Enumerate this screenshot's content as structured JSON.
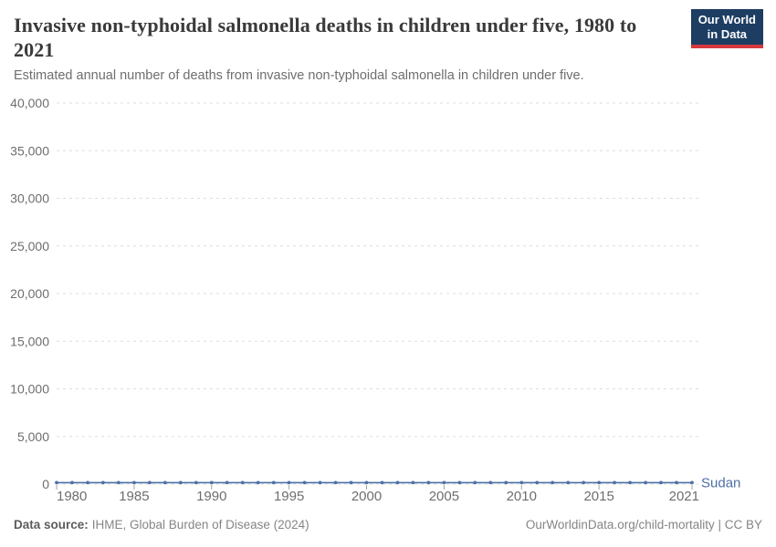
{
  "header": {
    "title": "Invasive non-typhoidal salmonella deaths in children under five, 1980 to 2021",
    "subtitle": "Estimated annual number of deaths from invasive non-typhoidal salmonella in children under five.",
    "logo": {
      "line1": "Our World",
      "line2": "in Data",
      "bg_color": "#1d3d63",
      "stripe_color": "#d7383d"
    }
  },
  "chart_data": {
    "type": "line",
    "title": "Invasive non-typhoidal salmonella deaths in children under five, 1980 to 2021",
    "xlabel": "",
    "ylabel": "",
    "xlim": [
      1980,
      2021
    ],
    "ylim": [
      0,
      40000
    ],
    "yticks": [
      0,
      5000,
      10000,
      15000,
      20000,
      25000,
      30000,
      35000,
      40000
    ],
    "xticks": [
      1980,
      1985,
      1990,
      1995,
      2000,
      2005,
      2010,
      2015,
      2021
    ],
    "grid": "horizontal-dashed",
    "legend_position": "end-of-line-label",
    "x": [
      1980,
      1981,
      1982,
      1983,
      1984,
      1985,
      1986,
      1987,
      1988,
      1989,
      1990,
      1991,
      1992,
      1993,
      1994,
      1995,
      1996,
      1997,
      1998,
      1999,
      2000,
      2001,
      2002,
      2003,
      2004,
      2005,
      2006,
      2007,
      2008,
      2009,
      2010,
      2011,
      2012,
      2013,
      2014,
      2015,
      2016,
      2017,
      2018,
      2019,
      2020,
      2021
    ],
    "series": [
      {
        "name": "Sudan",
        "color": "#4c6fa5",
        "values": [
          150,
          150,
          150,
          150,
          150,
          150,
          150,
          150,
          150,
          150,
          150,
          150,
          150,
          150,
          150,
          150,
          150,
          150,
          150,
          150,
          150,
          150,
          150,
          150,
          150,
          150,
          150,
          150,
          150,
          150,
          150,
          150,
          150,
          150,
          150,
          150,
          150,
          150,
          150,
          150,
          150,
          150
        ]
      }
    ]
  },
  "colors": {
    "grid": "#dddddd",
    "tick_text": "#6e6e6e",
    "axis_tick": "#a3a3a3",
    "entity_label": "#4c6fa5"
  },
  "footer": {
    "datasource_label": "Data source:",
    "datasource_value": "IHME, Global Burden of Disease (2024)",
    "link": "OurWorldinData.org/child-mortality | CC BY"
  }
}
